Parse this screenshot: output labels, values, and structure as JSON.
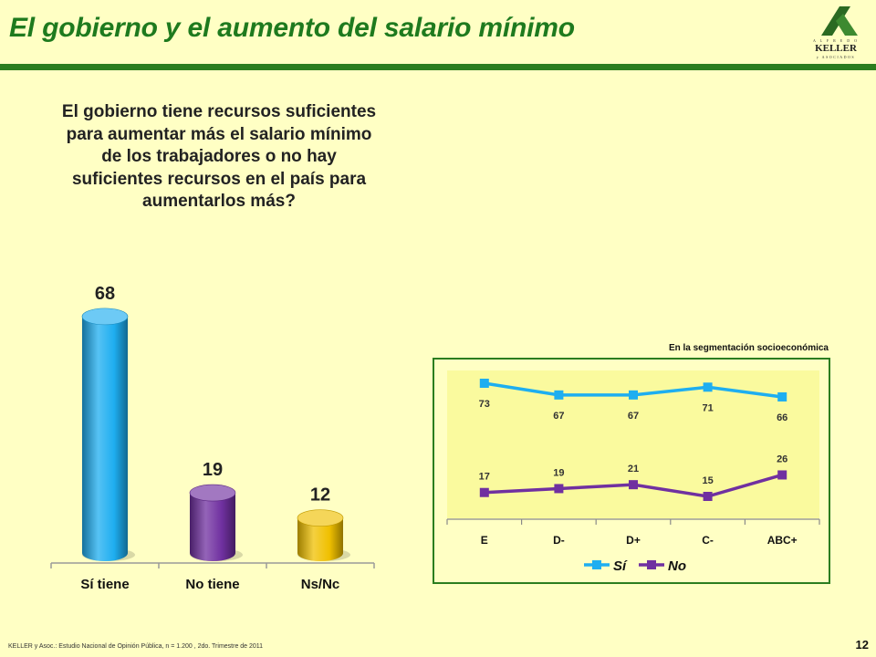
{
  "title": "El gobierno y el aumento del salario mínimo",
  "logo": {
    "top": "A L F R E D O",
    "name": "KELLER",
    "bottom": "y ASOCIADOS"
  },
  "question": "El gobierno tiene recursos suficientes para aumentar más el salario mínimo de los trabajadores o no hay suficientes recursos en el país para aumentarlos más?",
  "segment_label": "En la segmentación socioeconómica",
  "footer": "KELLER y Asoc.: Estudio Nacional de Opinión Pública, n = 1.200 , 2do. Trimestre de 2011",
  "page_number": "12",
  "colors": {
    "blue": "#1eaef0",
    "purple": "#7030a0",
    "gold": "#f0c000",
    "green": "#2b7d1f",
    "title": "#1e7a1e",
    "background": "#ffffc4"
  },
  "chart_data": [
    {
      "type": "bar",
      "categories": [
        "Sí tiene",
        "No tiene",
        "Ns/Nc"
      ],
      "values": [
        68,
        19,
        12
      ],
      "colors": [
        "#1eaef0",
        "#7030a0",
        "#f0c000"
      ],
      "title": "",
      "xlabel": "",
      "ylabel": "",
      "ylim": [
        0,
        70
      ],
      "grid": false
    },
    {
      "type": "line",
      "categories": [
        "E",
        "D-",
        "D+",
        "C-",
        "ABC+"
      ],
      "series": [
        {
          "name": "Sí",
          "values": [
            73,
            67,
            67,
            71,
            66
          ],
          "color": "#1eaef0"
        },
        {
          "name": "No",
          "values": [
            17,
            19,
            21,
            15,
            26
          ],
          "color": "#7030a0"
        }
      ],
      "ylim": [
        0,
        80
      ],
      "grid": false,
      "legend": "bottom"
    }
  ]
}
